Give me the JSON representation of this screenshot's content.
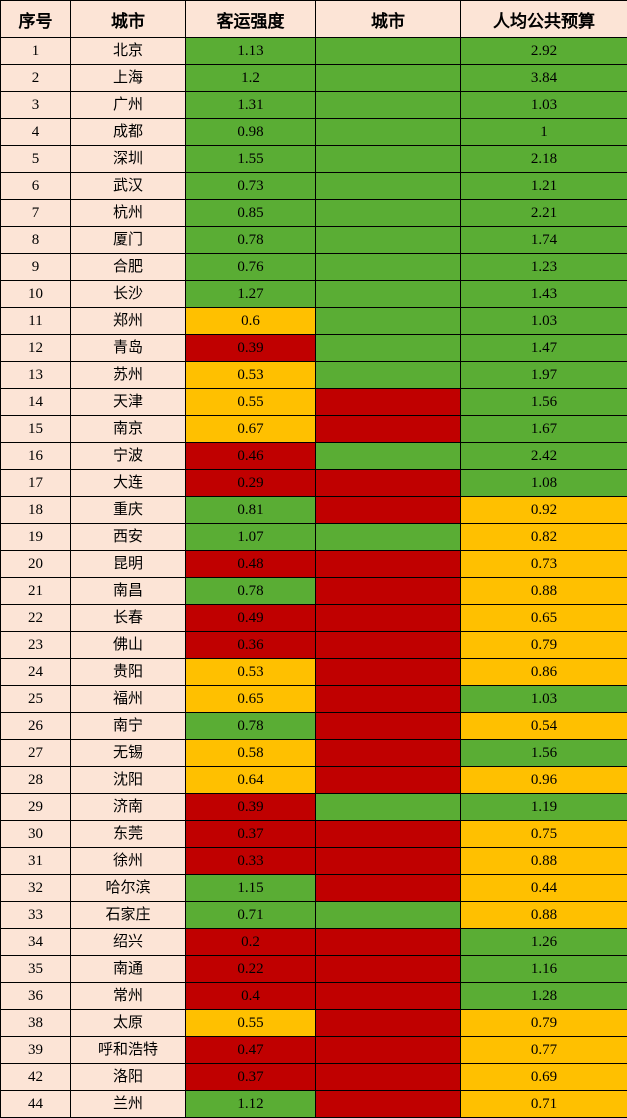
{
  "colors": {
    "green": "#5aad34",
    "yellow": "#ffc000",
    "red": "#c00000",
    "label_bg": "#fce4d6",
    "border": "#000000"
  },
  "chart_data": {
    "type": "table",
    "columns": [
      "序号",
      "城市",
      "客运强度",
      "城市",
      "人均公共预算"
    ],
    "rows": [
      {
        "no": "1",
        "city": "北京",
        "intensity": "1.13",
        "intensity_color": "green",
        "city2": "",
        "city2_color": "green",
        "budget": "2.92",
        "budget_color": "green"
      },
      {
        "no": "2",
        "city": "上海",
        "intensity": "1.2",
        "intensity_color": "green",
        "city2": "",
        "city2_color": "green",
        "budget": "3.84",
        "budget_color": "green"
      },
      {
        "no": "3",
        "city": "广州",
        "intensity": "1.31",
        "intensity_color": "green",
        "city2": "",
        "city2_color": "green",
        "budget": "1.03",
        "budget_color": "green"
      },
      {
        "no": "4",
        "city": "成都",
        "intensity": "0.98",
        "intensity_color": "green",
        "city2": "",
        "city2_color": "green",
        "budget": "1",
        "budget_color": "green"
      },
      {
        "no": "5",
        "city": "深圳",
        "intensity": "1.55",
        "intensity_color": "green",
        "city2": "",
        "city2_color": "green",
        "budget": "2.18",
        "budget_color": "green"
      },
      {
        "no": "6",
        "city": "武汉",
        "intensity": "0.73",
        "intensity_color": "green",
        "city2": "",
        "city2_color": "green",
        "budget": "1.21",
        "budget_color": "green"
      },
      {
        "no": "7",
        "city": "杭州",
        "intensity": "0.85",
        "intensity_color": "green",
        "city2": "",
        "city2_color": "green",
        "budget": "2.21",
        "budget_color": "green"
      },
      {
        "no": "8",
        "city": "厦门",
        "intensity": "0.78",
        "intensity_color": "green",
        "city2": "",
        "city2_color": "green",
        "budget": "1.74",
        "budget_color": "green"
      },
      {
        "no": "9",
        "city": "合肥",
        "intensity": "0.76",
        "intensity_color": "green",
        "city2": "",
        "city2_color": "green",
        "budget": "1.23",
        "budget_color": "green"
      },
      {
        "no": "10",
        "city": "长沙",
        "intensity": "1.27",
        "intensity_color": "green",
        "city2": "",
        "city2_color": "green",
        "budget": "1.43",
        "budget_color": "green"
      },
      {
        "no": "11",
        "city": "郑州",
        "intensity": "0.6",
        "intensity_color": "yellow",
        "city2": "",
        "city2_color": "green",
        "budget": "1.03",
        "budget_color": "green"
      },
      {
        "no": "12",
        "city": "青岛",
        "intensity": "0.39",
        "intensity_color": "red",
        "city2": "",
        "city2_color": "green",
        "budget": "1.47",
        "budget_color": "green"
      },
      {
        "no": "13",
        "city": "苏州",
        "intensity": "0.53",
        "intensity_color": "yellow",
        "city2": "",
        "city2_color": "green",
        "budget": "1.97",
        "budget_color": "green"
      },
      {
        "no": "14",
        "city": "天津",
        "intensity": "0.55",
        "intensity_color": "yellow",
        "city2": "",
        "city2_color": "red",
        "budget": "1.56",
        "budget_color": "green"
      },
      {
        "no": "15",
        "city": "南京",
        "intensity": "0.67",
        "intensity_color": "yellow",
        "city2": "",
        "city2_color": "red",
        "budget": "1.67",
        "budget_color": "green"
      },
      {
        "no": "16",
        "city": "宁波",
        "intensity": "0.46",
        "intensity_color": "red",
        "city2": "",
        "city2_color": "green",
        "budget": "2.42",
        "budget_color": "green"
      },
      {
        "no": "17",
        "city": "大连",
        "intensity": "0.29",
        "intensity_color": "red",
        "city2": "",
        "city2_color": "red",
        "budget": "1.08",
        "budget_color": "green"
      },
      {
        "no": "18",
        "city": "重庆",
        "intensity": "0.81",
        "intensity_color": "green",
        "city2": "",
        "city2_color": "red",
        "budget": "0.92",
        "budget_color": "yellow"
      },
      {
        "no": "19",
        "city": "西安",
        "intensity": "1.07",
        "intensity_color": "green",
        "city2": "",
        "city2_color": "green",
        "budget": "0.82",
        "budget_color": "yellow"
      },
      {
        "no": "20",
        "city": "昆明",
        "intensity": "0.48",
        "intensity_color": "red",
        "city2": "",
        "city2_color": "red",
        "budget": "0.73",
        "budget_color": "yellow"
      },
      {
        "no": "21",
        "city": "南昌",
        "intensity": "0.78",
        "intensity_color": "green",
        "city2": "",
        "city2_color": "red",
        "budget": "0.88",
        "budget_color": "yellow"
      },
      {
        "no": "22",
        "city": "长春",
        "intensity": "0.49",
        "intensity_color": "red",
        "city2": "",
        "city2_color": "red",
        "budget": "0.65",
        "budget_color": "yellow"
      },
      {
        "no": "23",
        "city": "佛山",
        "intensity": "0.36",
        "intensity_color": "red",
        "city2": "",
        "city2_color": "red",
        "budget": "0.79",
        "budget_color": "yellow"
      },
      {
        "no": "24",
        "city": "贵阳",
        "intensity": "0.53",
        "intensity_color": "yellow",
        "city2": "",
        "city2_color": "red",
        "budget": "0.86",
        "budget_color": "yellow"
      },
      {
        "no": "25",
        "city": "福州",
        "intensity": "0.65",
        "intensity_color": "yellow",
        "city2": "",
        "city2_color": "red",
        "budget": "1.03",
        "budget_color": "green"
      },
      {
        "no": "26",
        "city": "南宁",
        "intensity": "0.78",
        "intensity_color": "green",
        "city2": "",
        "city2_color": "red",
        "budget": "0.54",
        "budget_color": "yellow"
      },
      {
        "no": "27",
        "city": "无锡",
        "intensity": "0.58",
        "intensity_color": "yellow",
        "city2": "",
        "city2_color": "red",
        "budget": "1.56",
        "budget_color": "green"
      },
      {
        "no": "28",
        "city": "沈阳",
        "intensity": "0.64",
        "intensity_color": "yellow",
        "city2": "",
        "city2_color": "red",
        "budget": "0.96",
        "budget_color": "yellow"
      },
      {
        "no": "29",
        "city": "济南",
        "intensity": "0.39",
        "intensity_color": "red",
        "city2": "",
        "city2_color": "green",
        "budget": "1.19",
        "budget_color": "green"
      },
      {
        "no": "30",
        "city": "东莞",
        "intensity": "0.37",
        "intensity_color": "red",
        "city2": "",
        "city2_color": "red",
        "budget": "0.75",
        "budget_color": "yellow"
      },
      {
        "no": "31",
        "city": "徐州",
        "intensity": "0.33",
        "intensity_color": "red",
        "city2": "",
        "city2_color": "red",
        "budget": "0.88",
        "budget_color": "yellow"
      },
      {
        "no": "32",
        "city": "哈尔滨",
        "intensity": "1.15",
        "intensity_color": "green",
        "city2": "",
        "city2_color": "red",
        "budget": "0.44",
        "budget_color": "yellow"
      },
      {
        "no": "33",
        "city": "石家庄",
        "intensity": "0.71",
        "intensity_color": "green",
        "city2": "",
        "city2_color": "green",
        "budget": "0.88",
        "budget_color": "yellow"
      },
      {
        "no": "34",
        "city": "绍兴",
        "intensity": "0.2",
        "intensity_color": "red",
        "city2": "",
        "city2_color": "red",
        "budget": "1.26",
        "budget_color": "green"
      },
      {
        "no": "35",
        "city": "南通",
        "intensity": "0.22",
        "intensity_color": "red",
        "city2": "",
        "city2_color": "red",
        "budget": "1.16",
        "budget_color": "green"
      },
      {
        "no": "36",
        "city": "常州",
        "intensity": "0.4",
        "intensity_color": "red",
        "city2": "",
        "city2_color": "red",
        "budget": "1.28",
        "budget_color": "green"
      },
      {
        "no": "38",
        "city": "太原",
        "intensity": "0.55",
        "intensity_color": "yellow",
        "city2": "",
        "city2_color": "red",
        "budget": "0.79",
        "budget_color": "yellow"
      },
      {
        "no": "39",
        "city": "呼和浩特",
        "intensity": "0.47",
        "intensity_color": "red",
        "city2": "",
        "city2_color": "red",
        "budget": "0.77",
        "budget_color": "yellow"
      },
      {
        "no": "42",
        "city": "洛阳",
        "intensity": "0.37",
        "intensity_color": "red",
        "city2": "",
        "city2_color": "red",
        "budget": "0.69",
        "budget_color": "yellow"
      },
      {
        "no": "44",
        "city": "兰州",
        "intensity": "1.12",
        "intensity_color": "green",
        "city2": "",
        "city2_color": "red",
        "budget": "0.71",
        "budget_color": "yellow"
      }
    ]
  }
}
